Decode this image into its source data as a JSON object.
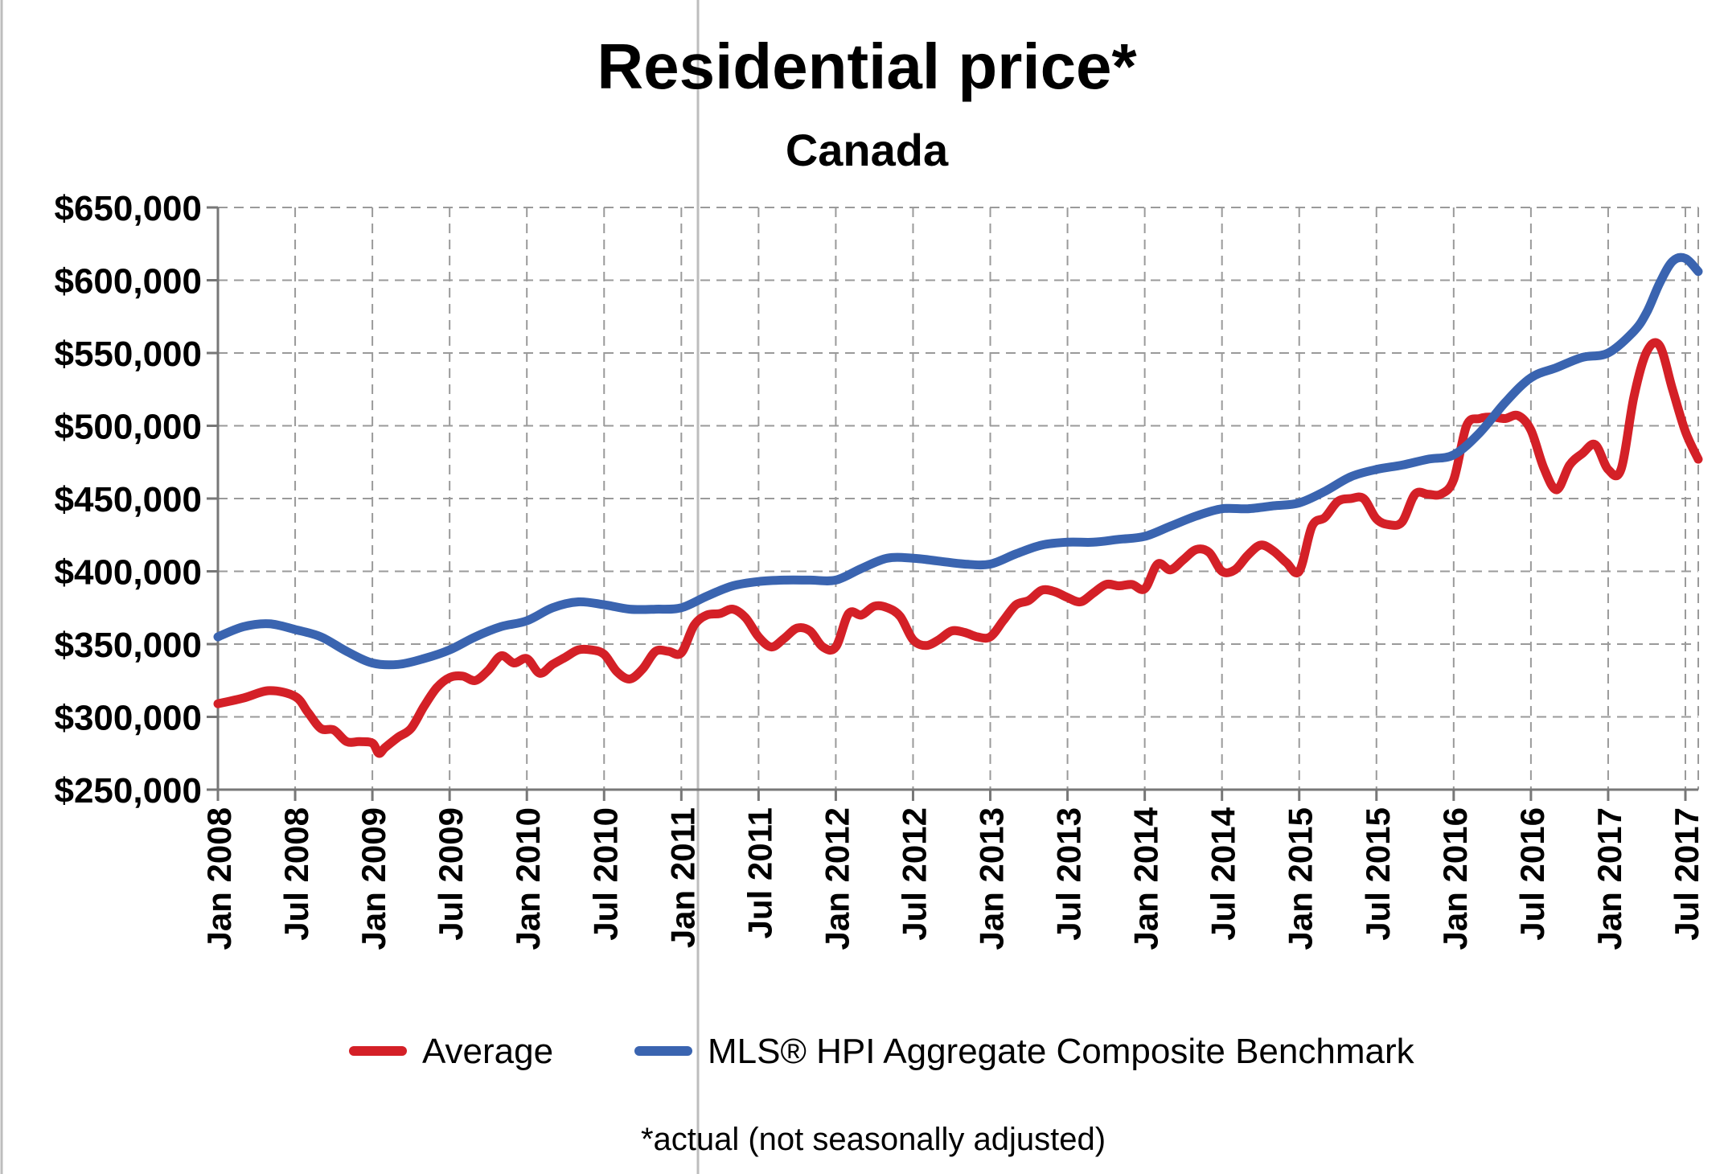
{
  "chart_data": {
    "type": "line",
    "title": "Residential price*",
    "subtitle": "Canada",
    "footnote": "*actual (not seasonally adjusted)",
    "xlabel": "",
    "ylabel": "",
    "ylim": [
      250000,
      650000
    ],
    "yticks": [
      250000,
      300000,
      350000,
      400000,
      450000,
      500000,
      550000,
      600000,
      650000
    ],
    "ytick_labels": [
      "$250,000",
      "$300,000",
      "$350,000",
      "$400,000",
      "$450,000",
      "$500,000",
      "$550,000",
      "$600,000",
      "$650,000"
    ],
    "x_range_months": [
      0,
      115
    ],
    "xticks": [
      0,
      6,
      12,
      18,
      24,
      30,
      36,
      42,
      48,
      54,
      60,
      66,
      72,
      78,
      84,
      90,
      96,
      102,
      108,
      114
    ],
    "xtick_labels": [
      "Jan 2008",
      "Jul 2008",
      "Jan 2009",
      "Jul 2009",
      "Jan 2010",
      "Jul 2010",
      "Jan 2011",
      "Jul 2011",
      "Jan 2012",
      "Jul 2012",
      "Jan 2013",
      "Jul 2013",
      "Jan 2014",
      "Jul 2014",
      "Jan 2015",
      "Jul 2015",
      "Jan 2016",
      "Jul 2016",
      "Jan 2017",
      "Jul 2017"
    ],
    "grid": true,
    "legend_position": "bottom",
    "series": [
      {
        "name": "Average",
        "color": "#d42027",
        "points": [
          [
            0,
            309000
          ],
          [
            2,
            313000
          ],
          [
            4,
            318000
          ],
          [
            6,
            314000
          ],
          [
            7,
            303000
          ],
          [
            8,
            292000
          ],
          [
            9,
            291000
          ],
          [
            10,
            283000
          ],
          [
            11,
            283000
          ],
          [
            12,
            282000
          ],
          [
            12.5,
            275000
          ],
          [
            13,
            279000
          ],
          [
            14,
            286000
          ],
          [
            15,
            292000
          ],
          [
            16,
            307000
          ],
          [
            17,
            320000
          ],
          [
            18,
            327000
          ],
          [
            19,
            328000
          ],
          [
            20,
            325000
          ],
          [
            21,
            332000
          ],
          [
            22,
            342000
          ],
          [
            23,
            337000
          ],
          [
            24,
            340000
          ],
          [
            25,
            330000
          ],
          [
            26,
            336000
          ],
          [
            27,
            341000
          ],
          [
            28,
            346000
          ],
          [
            29,
            346000
          ],
          [
            30,
            343000
          ],
          [
            31,
            331000
          ],
          [
            32,
            326000
          ],
          [
            33,
            333000
          ],
          [
            34,
            345000
          ],
          [
            35,
            345000
          ],
          [
            36,
            344000
          ],
          [
            37,
            363000
          ],
          [
            38,
            370000
          ],
          [
            39,
            371000
          ],
          [
            40,
            374000
          ],
          [
            41,
            368000
          ],
          [
            42,
            355000
          ],
          [
            43,
            348000
          ],
          [
            44,
            354000
          ],
          [
            45,
            361000
          ],
          [
            46,
            359000
          ],
          [
            47,
            348000
          ],
          [
            48,
            348000
          ],
          [
            49,
            371000
          ],
          [
            50,
            370000
          ],
          [
            51,
            376000
          ],
          [
            52,
            375000
          ],
          [
            53,
            369000
          ],
          [
            54,
            353000
          ],
          [
            55,
            349000
          ],
          [
            56,
            353000
          ],
          [
            57,
            359000
          ],
          [
            58,
            358000
          ],
          [
            59,
            355000
          ],
          [
            60,
            355000
          ],
          [
            61,
            366000
          ],
          [
            62,
            377000
          ],
          [
            63,
            380000
          ],
          [
            64,
            387000
          ],
          [
            65,
            386000
          ],
          [
            66,
            382000
          ],
          [
            67,
            379000
          ],
          [
            68,
            385000
          ],
          [
            69,
            391000
          ],
          [
            70,
            390000
          ],
          [
            71,
            391000
          ],
          [
            72,
            388000
          ],
          [
            73,
            405000
          ],
          [
            74,
            401000
          ],
          [
            75,
            408000
          ],
          [
            76,
            415000
          ],
          [
            77,
            413000
          ],
          [
            78,
            400000
          ],
          [
            79,
            401000
          ],
          [
            80,
            411000
          ],
          [
            81,
            418000
          ],
          [
            82,
            414000
          ],
          [
            83,
            406000
          ],
          [
            84,
            400000
          ],
          [
            85,
            431000
          ],
          [
            86,
            437000
          ],
          [
            87,
            448000
          ],
          [
            88,
            450000
          ],
          [
            89,
            450000
          ],
          [
            90,
            436000
          ],
          [
            91,
            432000
          ],
          [
            92,
            434000
          ],
          [
            93,
            453000
          ],
          [
            94,
            453000
          ],
          [
            95,
            453000
          ],
          [
            96,
            463000
          ],
          [
            97,
            500000
          ],
          [
            98,
            505000
          ],
          [
            99,
            506000
          ],
          [
            100,
            505000
          ],
          [
            101,
            507000
          ],
          [
            102,
            497000
          ],
          [
            103,
            471000
          ],
          [
            104,
            456000
          ],
          [
            105,
            473000
          ],
          [
            106,
            481000
          ],
          [
            107,
            487000
          ],
          [
            108,
            470000
          ],
          [
            109,
            470000
          ],
          [
            110,
            520000
          ],
          [
            111,
            551000
          ],
          [
            112,
            555000
          ],
          [
            113,
            525000
          ],
          [
            114,
            496000
          ],
          [
            115,
            477000
          ]
        ]
      },
      {
        "name": "MLS® HPI Aggregate Composite Benchmark",
        "color": "#3a64b0",
        "points": [
          [
            0,
            355000
          ],
          [
            2,
            362000
          ],
          [
            4,
            364000
          ],
          [
            6,
            360000
          ],
          [
            8,
            355000
          ],
          [
            10,
            345000
          ],
          [
            12,
            337000
          ],
          [
            14,
            336000
          ],
          [
            16,
            340000
          ],
          [
            18,
            346000
          ],
          [
            20,
            355000
          ],
          [
            22,
            362000
          ],
          [
            24,
            366000
          ],
          [
            26,
            375000
          ],
          [
            28,
            379000
          ],
          [
            30,
            377000
          ],
          [
            32,
            374000
          ],
          [
            34,
            374000
          ],
          [
            36,
            375000
          ],
          [
            38,
            383000
          ],
          [
            40,
            390000
          ],
          [
            42,
            393000
          ],
          [
            44,
            394000
          ],
          [
            46,
            394000
          ],
          [
            48,
            394000
          ],
          [
            50,
            402000
          ],
          [
            52,
            409000
          ],
          [
            54,
            409000
          ],
          [
            56,
            407000
          ],
          [
            58,
            405000
          ],
          [
            60,
            405000
          ],
          [
            62,
            412000
          ],
          [
            64,
            418000
          ],
          [
            66,
            420000
          ],
          [
            68,
            420000
          ],
          [
            70,
            422000
          ],
          [
            72,
            424000
          ],
          [
            74,
            431000
          ],
          [
            76,
            438000
          ],
          [
            78,
            443000
          ],
          [
            80,
            443000
          ],
          [
            82,
            445000
          ],
          [
            84,
            447000
          ],
          [
            86,
            455000
          ],
          [
            88,
            465000
          ],
          [
            90,
            470000
          ],
          [
            92,
            473000
          ],
          [
            94,
            477000
          ],
          [
            96,
            480000
          ],
          [
            98,
            495000
          ],
          [
            100,
            516000
          ],
          [
            102,
            533000
          ],
          [
            104,
            540000
          ],
          [
            106,
            547000
          ],
          [
            108,
            550000
          ],
          [
            110,
            565000
          ],
          [
            111,
            578000
          ],
          [
            112,
            598000
          ],
          [
            113,
            613000
          ],
          [
            114,
            615000
          ],
          [
            115,
            606000
          ]
        ]
      }
    ]
  }
}
